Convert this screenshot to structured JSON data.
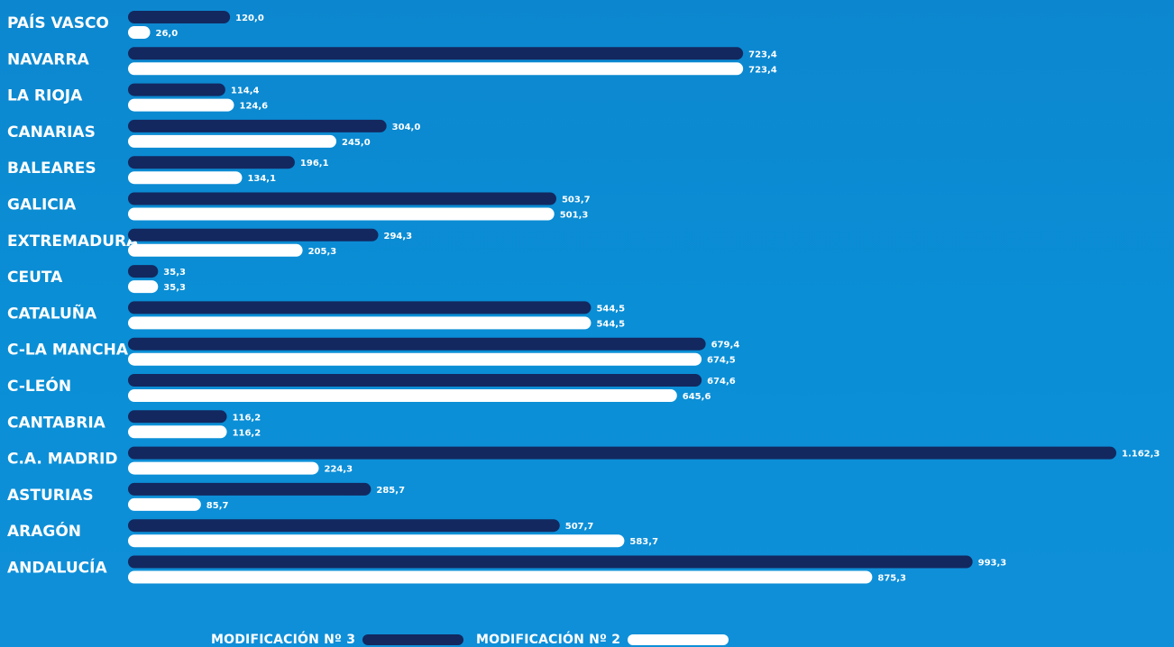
{
  "chart_data": {
    "type": "bar",
    "orientation": "horizontal",
    "categories": [
      "PAÍS VASCO",
      "NAVARRA",
      "LA RIOJA",
      "CANARIAS",
      "BALEARES",
      "GALICIA",
      "EXTREMADURA",
      "CEUTA",
      "CATALUÑA",
      "C-LA MANCHA",
      "C-LEÓN",
      "CANTABRIA",
      "C.A. MADRID",
      "ASTURIAS",
      "ARAGÓN",
      "ANDALUCÍA"
    ],
    "series": [
      {
        "name": "MODIFICACIÓN Nº 3",
        "color": "#13285f",
        "values": [
          120.0,
          723.4,
          114.4,
          304.0,
          196.1,
          503.7,
          294.3,
          35.3,
          544.5,
          679.4,
          674.6,
          116.2,
          1162.3,
          285.7,
          507.7,
          993.3
        ],
        "labels": [
          "120,0",
          "723,4",
          "114,4",
          "304,0",
          "196,1",
          "503,7",
          "294,3",
          "35,3",
          "544,5",
          "679,4",
          "674,6",
          "116,2",
          "1.162,3",
          "285,7",
          "507,7",
          "993,3"
        ]
      },
      {
        "name": "MODIFICACIÓN Nº 2",
        "color": "#ffffff",
        "values": [
          26.0,
          723.4,
          124.6,
          245.0,
          134.1,
          501.3,
          205.3,
          35.3,
          544.5,
          674.5,
          645.6,
          116.2,
          224.3,
          85.7,
          583.7,
          875.3
        ],
        "labels": [
          "26,0",
          "723,4",
          "124,6",
          "245,0",
          "134,1",
          "501,3",
          "205,3",
          "35,3",
          "544,5",
          "674,5",
          "645,6",
          "116,2",
          "224,3",
          "85,7",
          "583,7",
          "875,3"
        ]
      }
    ],
    "xlim": [
      0,
      1162.3
    ],
    "grid": false,
    "legend_position": "bottom-center"
  }
}
